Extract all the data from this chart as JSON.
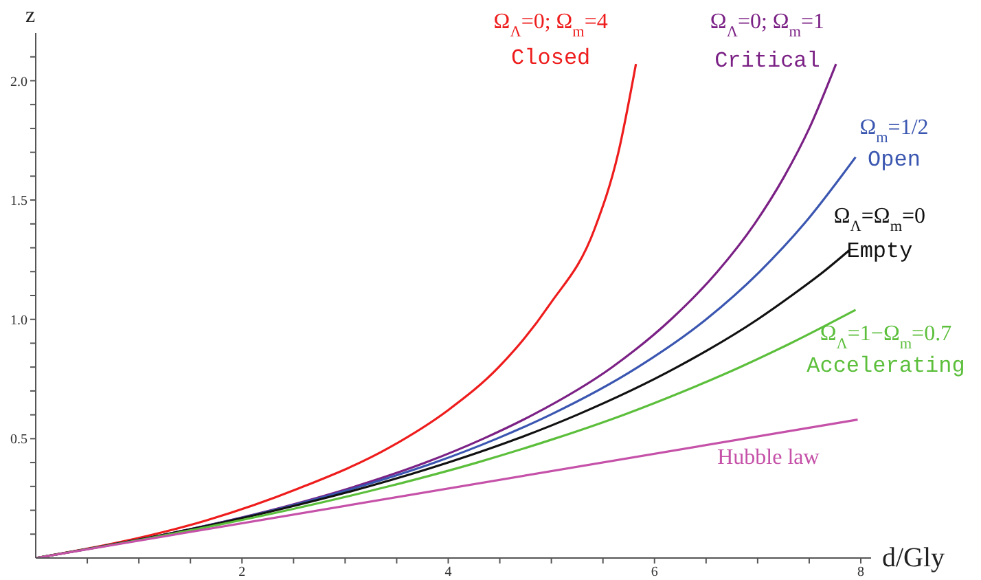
{
  "chart_data": {
    "type": "line",
    "xlabel": "d/Gly",
    "ylabel": "z",
    "xlim": [
      0,
      8.1
    ],
    "ylim": [
      0,
      2.2
    ],
    "xticks": [
      {
        "value": 0.5,
        "label": null
      },
      {
        "value": 1,
        "label": null
      },
      {
        "value": 1.5,
        "label": null
      },
      2,
      {
        "value": 2.5,
        "label": null
      },
      {
        "value": 3,
        "label": null
      },
      {
        "value": 3.5,
        "label": null
      },
      4,
      {
        "value": 4.5,
        "label": null
      },
      {
        "value": 5,
        "label": null
      },
      {
        "value": 5.5,
        "label": null
      },
      6,
      {
        "value": 6.5,
        "label": null
      },
      {
        "value": 7,
        "label": null
      },
      {
        "value": 7.5,
        "label": null
      },
      8
    ],
    "yticks": [
      {
        "value": 0.1,
        "label": null
      },
      {
        "value": 0.2,
        "label": null
      },
      {
        "value": 0.3,
        "label": null
      },
      {
        "value": 0.4,
        "label": null
      },
      {
        "value": 0.5,
        "label": "0.5"
      },
      {
        "value": 0.6,
        "label": null
      },
      {
        "value": 0.7,
        "label": null
      },
      {
        "value": 0.8,
        "label": null
      },
      {
        "value": 0.9,
        "label": null
      },
      {
        "value": 1.0,
        "label": "1.0"
      },
      {
        "value": 1.1,
        "label": null
      },
      {
        "value": 1.2,
        "label": null
      },
      {
        "value": 1.3,
        "label": null
      },
      {
        "value": 1.4,
        "label": null
      },
      {
        "value": 1.5,
        "label": "1.5"
      },
      {
        "value": 1.6,
        "label": null
      },
      {
        "value": 1.7,
        "label": null
      },
      {
        "value": 1.8,
        "label": null
      },
      {
        "value": 1.9,
        "label": null
      },
      {
        "value": 2.0,
        "label": "2.0"
      },
      {
        "value": 2.1,
        "label": null
      }
    ],
    "grid": false,
    "legend": false,
    "marker": "none",
    "line_style": "solid",
    "series": [
      {
        "name": "Ω$_{Λ}$=0; Ω$_{m}$=4\nClosed",
        "color": "#ee1c1c",
        "x": [
          0,
          0.8,
          1.65,
          2.54,
          3.43,
          4.0,
          4.49,
          4.98,
          5.42,
          5.65,
          5.82
        ],
        "values": [
          0,
          0.065,
          0.157,
          0.29,
          0.463,
          0.62,
          0.8,
          1.06,
          1.38,
          1.7,
          2.07
        ]
      },
      {
        "name": "Ω$_{Λ}$=0; Ω$_{m}$=1\nCritical",
        "color": "#7b2185",
        "x": [
          0,
          1.27,
          2.28,
          3.1,
          3.78,
          4.34,
          4.82,
          5.59,
          6.16,
          6.61,
          6.97,
          7.26,
          7.5,
          7.76
        ],
        "values": [
          0,
          0.1,
          0.2,
          0.3,
          0.4,
          0.5,
          0.6,
          0.8,
          1.0,
          1.2,
          1.4,
          1.6,
          1.8,
          2.07
        ]
      },
      {
        "name": "Ω$_{m}$=1/2\nOpen",
        "color": "#3a56b0",
        "x": [
          0,
          1.27,
          2.3,
          3.15,
          3.87,
          4.47,
          4.99,
          5.84,
          6.5,
          7.02,
          7.45,
          7.95
        ],
        "values": [
          0,
          0.1,
          0.2,
          0.3,
          0.4,
          0.5,
          0.6,
          0.8,
          1.0,
          1.2,
          1.4,
          1.68
        ]
      },
      {
        "name": "Ω$_{Λ}$=Ω$_{m}$=0\nEmpty",
        "color": "#111111",
        "x": [
          0,
          1.27,
          2.33,
          3.23,
          4.0,
          4.67,
          5.25,
          6.22,
          7.0,
          7.33,
          7.64,
          7.89
        ],
        "values": [
          0,
          0.1,
          0.2,
          0.3,
          0.4,
          0.5,
          0.6,
          0.8,
          1.0,
          1.1,
          1.2,
          1.29
        ]
      },
      {
        "name": "Ω$_{Λ}$=1−Ω$_{m}$=0.7\nAccelerating",
        "color": "#5cbf3c",
        "x": [
          0,
          1.31,
          2.44,
          3.42,
          4.28,
          5.03,
          5.7,
          6.29,
          6.83,
          7.32,
          7.95
        ],
        "values": [
          0,
          0.1,
          0.2,
          0.3,
          0.4,
          0.5,
          0.6,
          0.7,
          0.8,
          0.9,
          1.04
        ]
      },
      {
        "name": "Hubble law",
        "color": "#c551a8",
        "x": [
          0,
          7.97
        ],
        "values": [
          0,
          0.58
        ]
      }
    ]
  }
}
